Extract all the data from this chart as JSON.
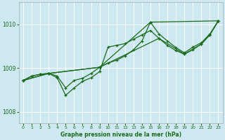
{
  "bg_color": "#cde8f0",
  "grid_color": "#ffffff",
  "line_color": "#1a6b1a",
  "xlabel": "Graphe pression niveau de la mer (hPa)",
  "xlabel_color": "#1a6b1a",
  "ylabel_color": "#1a6b1a",
  "ylim": [
    1007.75,
    1010.5
  ],
  "xlim": [
    -0.5,
    23.5
  ],
  "yticks": [
    1008,
    1009,
    1010
  ],
  "xticks": [
    0,
    1,
    2,
    3,
    4,
    5,
    6,
    7,
    8,
    9,
    10,
    11,
    12,
    13,
    14,
    15,
    16,
    17,
    18,
    19,
    20,
    21,
    22,
    23
  ],
  "line1_x": [
    0,
    1,
    2,
    3,
    4,
    5,
    6,
    7,
    8,
    9,
    10,
    11,
    12,
    13,
    14,
    15,
    16,
    17,
    18,
    19,
    20,
    21,
    22,
    23
  ],
  "line1_y": [
    1008.72,
    1008.82,
    1008.86,
    1008.88,
    1008.82,
    1008.55,
    1008.72,
    1008.77,
    1008.88,
    1009.02,
    1009.12,
    1009.18,
    1009.28,
    1009.42,
    1009.62,
    1010.05,
    1009.78,
    1009.62,
    1009.47,
    1009.35,
    1009.48,
    1009.58,
    1009.78,
    1010.08
  ],
  "line2_x": [
    0,
    1,
    2,
    3,
    4,
    5,
    6,
    7,
    8,
    9,
    10,
    11,
    12,
    13,
    14,
    15,
    16,
    17,
    18,
    19,
    20,
    21,
    22,
    23
  ],
  "line2_y": [
    1008.72,
    1008.82,
    1008.86,
    1008.88,
    1008.78,
    1008.38,
    1008.55,
    1008.7,
    1008.78,
    1008.92,
    1009.48,
    1009.52,
    1009.56,
    1009.66,
    1009.76,
    1009.86,
    1009.68,
    1009.52,
    1009.4,
    1009.32,
    1009.42,
    1009.55,
    1009.76,
    1010.08
  ],
  "line3_x": [
    0,
    3,
    9,
    15,
    23
  ],
  "line3_y": [
    1008.72,
    1008.88,
    1009.02,
    1010.05,
    1010.08
  ],
  "line4_x": [
    0,
    3,
    9,
    16,
    19,
    21,
    22,
    23
  ],
  "line4_y": [
    1008.72,
    1008.88,
    1009.02,
    1009.68,
    1009.32,
    1009.55,
    1009.76,
    1010.08
  ]
}
